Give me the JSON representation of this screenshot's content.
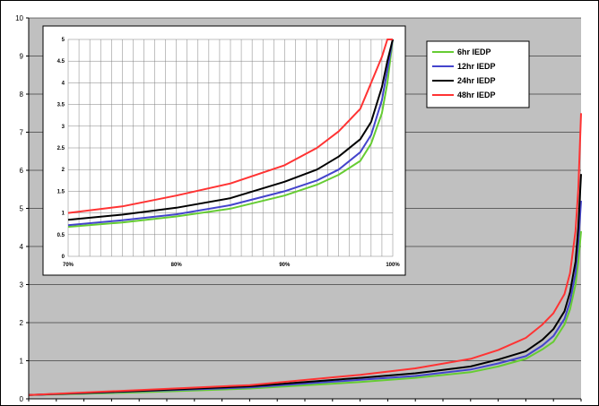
{
  "chart_data": [
    {
      "id": "main",
      "type": "line",
      "xlim": [
        0,
        1
      ],
      "ylim": [
        0,
        10
      ],
      "yticks": [
        "0",
        "1",
        "2",
        "3",
        "4",
        "5",
        "6",
        "7",
        "8",
        "9",
        "10"
      ],
      "grid": true,
      "series": [
        {
          "name": "6hr IEDP",
          "color": "#66cc33",
          "x": [
            0,
            0.2,
            0.4,
            0.6,
            0.7,
            0.8,
            0.85,
            0.9,
            0.93,
            0.95,
            0.97,
            0.98,
            0.99,
            0.995,
            1.0
          ],
          "y": [
            0.1,
            0.17,
            0.27,
            0.44,
            0.55,
            0.7,
            0.85,
            1.05,
            1.3,
            1.5,
            1.95,
            2.35,
            3.0,
            3.6,
            4.4
          ]
        },
        {
          "name": "12hr IEDP",
          "color": "#4444cc",
          "x": [
            0,
            0.2,
            0.4,
            0.6,
            0.7,
            0.8,
            0.85,
            0.9,
            0.93,
            0.95,
            0.97,
            0.98,
            0.99,
            0.995,
            1.0
          ],
          "y": [
            0.1,
            0.2,
            0.3,
            0.5,
            0.6,
            0.77,
            0.93,
            1.12,
            1.4,
            1.65,
            2.1,
            2.55,
            3.3,
            4.1,
            5.2
          ]
        },
        {
          "name": "24hr IEDP",
          "color": "#000000",
          "x": [
            0,
            0.2,
            0.4,
            0.6,
            0.7,
            0.8,
            0.85,
            0.9,
            0.93,
            0.95,
            0.97,
            0.98,
            0.99,
            0.995,
            1.0
          ],
          "y": [
            0.1,
            0.21,
            0.33,
            0.55,
            0.67,
            0.85,
            1.03,
            1.25,
            1.55,
            1.83,
            2.3,
            2.8,
            3.6,
            4.5,
            5.9
          ]
        },
        {
          "name": "48hr IEDP",
          "color": "#ff3333",
          "x": [
            0,
            0.2,
            0.4,
            0.6,
            0.7,
            0.8,
            0.85,
            0.9,
            0.93,
            0.95,
            0.97,
            0.98,
            0.99,
            0.995,
            1.0
          ],
          "y": [
            0.1,
            0.23,
            0.36,
            0.63,
            0.8,
            1.05,
            1.28,
            1.6,
            1.95,
            2.25,
            2.75,
            3.3,
            4.4,
            5.5,
            7.5
          ]
        }
      ]
    },
    {
      "id": "inset",
      "type": "line",
      "xlim": [
        0.7,
        1.0
      ],
      "ylim": [
        0,
        5
      ],
      "xticks": [
        {
          "value": 0.7,
          "label": "70%"
        },
        {
          "value": 0.8,
          "label": "80%"
        },
        {
          "value": 0.9,
          "label": "90%"
        },
        {
          "value": 1.0,
          "label": "100%"
        }
      ],
      "yticks": [
        "0",
        "0.5",
        "1",
        "1.5",
        "2",
        "2.5",
        "3",
        "3.5",
        "4",
        "4.5",
        "5"
      ],
      "grid": true,
      "legend_position": "top-right",
      "series": [
        {
          "name": "6hr IEDP",
          "color": "#66cc33",
          "x": [
            0.7,
            0.75,
            0.8,
            0.85,
            0.9,
            0.93,
            0.95,
            0.97,
            0.98,
            0.99,
            0.995,
            1.0
          ],
          "y": [
            0.68,
            0.78,
            0.92,
            1.1,
            1.4,
            1.65,
            1.88,
            2.2,
            2.6,
            3.3,
            4.0,
            5.0
          ]
        },
        {
          "name": "12hr IEDP",
          "color": "#4444cc",
          "x": [
            0.7,
            0.75,
            0.8,
            0.85,
            0.9,
            0.93,
            0.95,
            0.97,
            0.98,
            0.99,
            0.995,
            1.0
          ],
          "y": [
            0.72,
            0.83,
            0.97,
            1.18,
            1.5,
            1.75,
            2.0,
            2.4,
            2.8,
            3.6,
            4.3,
            5.0
          ]
        },
        {
          "name": "24hr IEDP",
          "color": "#000000",
          "x": [
            0.7,
            0.75,
            0.8,
            0.85,
            0.9,
            0.93,
            0.95,
            0.97,
            0.98,
            0.99,
            0.995,
            1.0
          ],
          "y": [
            0.84,
            0.96,
            1.12,
            1.34,
            1.72,
            2.0,
            2.3,
            2.7,
            3.1,
            3.9,
            4.5,
            5.0
          ]
        },
        {
          "name": "48hr IEDP",
          "color": "#ff3333",
          "x": [
            0.7,
            0.75,
            0.8,
            0.85,
            0.9,
            0.93,
            0.95,
            0.97,
            0.98,
            0.99,
            0.995,
            1.0
          ],
          "y": [
            1.0,
            1.15,
            1.4,
            1.68,
            2.1,
            2.5,
            2.88,
            3.4,
            4.0,
            4.6,
            5.0,
            5.0
          ]
        }
      ]
    }
  ]
}
